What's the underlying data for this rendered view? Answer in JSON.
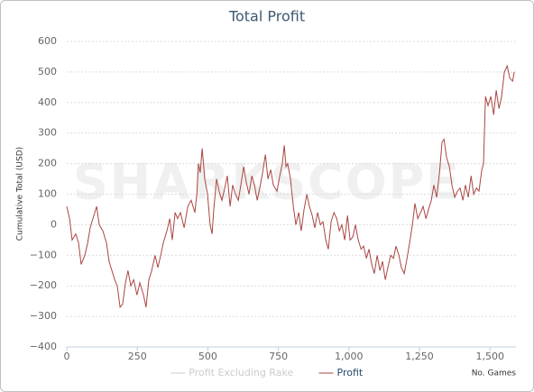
{
  "chart_data": {
    "type": "line",
    "title": "Total Profit",
    "watermark": "SHARKSCOPE",
    "ylabel": "Cumulative Total (USD)",
    "xlabel": "No. Games",
    "xlim": [
      0,
      1592
    ],
    "ylim": [
      -400,
      600
    ],
    "xticks": [
      0,
      250,
      500,
      750,
      {
        "value": 1000,
        "label": "1,000"
      },
      {
        "value": 1250,
        "label": "1,250"
      },
      {
        "value": 1500,
        "label": "1,500"
      }
    ],
    "yticks": [
      {
        "value": -400,
        "label": "−400"
      },
      {
        "value": -300,
        "label": "−300"
      },
      {
        "value": -200,
        "label": "−200"
      },
      {
        "value": -100,
        "label": "−100"
      },
      0,
      100,
      200,
      300,
      400,
      500,
      600
    ],
    "grid": true,
    "legend": "bottom",
    "series": [
      {
        "name": "Profit Excluding Rake",
        "color": "#cccccc",
        "visible": false
      },
      {
        "name": "Profit",
        "color": "#aa4643",
        "visible": true,
        "x": [
          0,
          10,
          19,
          32,
          42,
          51,
          64,
          74,
          83,
          96,
          106,
          115,
          128,
          141,
          150,
          160,
          170,
          179,
          189,
          198,
          208,
          217,
          227,
          237,
          249,
          259,
          272,
          281,
          291,
          301,
          313,
          323,
          333,
          342,
          355,
          365,
          374,
          384,
          393,
          403,
          416,
          429,
          441,
          454,
          461,
          467,
          473,
          480,
          489,
          499,
          508,
          515,
          521,
          531,
          540,
          550,
          560,
          569,
          579,
          588,
          598,
          608,
          617,
          627,
          636,
          646,
          656,
          665,
          675,
          684,
          694,
          704,
          713,
          723,
          732,
          745,
          755,
          764,
          771,
          777,
          783,
          793,
          803,
          812,
          822,
          831,
          841,
          851,
          860,
          870,
          879,
          889,
          899,
          908,
          918,
          927,
          937,
          947,
          957,
          966,
          975,
          985,
          995,
          1004,
          1014,
          1023,
          1033,
          1043,
          1052,
          1062,
          1071,
          1081,
          1090,
          1100,
          1110,
          1119,
          1129,
          1138,
          1148,
          1158,
          1167,
          1177,
          1186,
          1196,
          1206,
          1215,
          1225,
          1234,
          1244,
          1254,
          1263,
          1273,
          1282,
          1292,
          1301,
          1311,
          1321,
          1330,
          1337,
          1346,
          1356,
          1365,
          1375,
          1385,
          1394,
          1404,
          1413,
          1423,
          1433,
          1442,
          1452,
          1461,
          1471,
          1477,
          1484,
          1493,
          1503,
          1513,
          1522,
          1532,
          1541,
          1551,
          1561,
          1570,
          1580,
          1586
        ],
        "values": [
          60,
          20,
          -50,
          -30,
          -60,
          -130,
          -100,
          -60,
          -10,
          30,
          60,
          0,
          -20,
          -60,
          -120,
          -150,
          -180,
          -200,
          -270,
          -260,
          -190,
          -150,
          -200,
          -180,
          -230,
          -190,
          -230,
          -270,
          -180,
          -150,
          -100,
          -140,
          -100,
          -60,
          -20,
          20,
          -50,
          40,
          20,
          40,
          -10,
          60,
          80,
          40,
          100,
          200,
          170,
          250,
          150,
          100,
          0,
          -30,
          50,
          150,
          110,
          80,
          120,
          160,
          60,
          130,
          100,
          80,
          130,
          190,
          140,
          100,
          160,
          130,
          80,
          120,
          170,
          230,
          150,
          180,
          130,
          110,
          160,
          200,
          260,
          190,
          200,
          150,
          60,
          0,
          40,
          -20,
          50,
          100,
          60,
          30,
          -10,
          40,
          0,
          10,
          -50,
          -80,
          10,
          40,
          20,
          -20,
          0,
          -50,
          30,
          -50,
          -40,
          0,
          -50,
          -80,
          -70,
          -110,
          -80,
          -130,
          -160,
          -100,
          -150,
          -120,
          -180,
          -140,
          -100,
          -110,
          -70,
          -100,
          -140,
          -160,
          -110,
          -60,
          0,
          70,
          20,
          40,
          60,
          20,
          50,
          80,
          130,
          90,
          170,
          270,
          280,
          220,
          190,
          130,
          90,
          110,
          120,
          80,
          130,
          90,
          160,
          100,
          120,
          110,
          180,
          200,
          420,
          390,
          420,
          360,
          440,
          380,
          420,
          500,
          520,
          480,
          470,
          500
        ]
      }
    ]
  }
}
